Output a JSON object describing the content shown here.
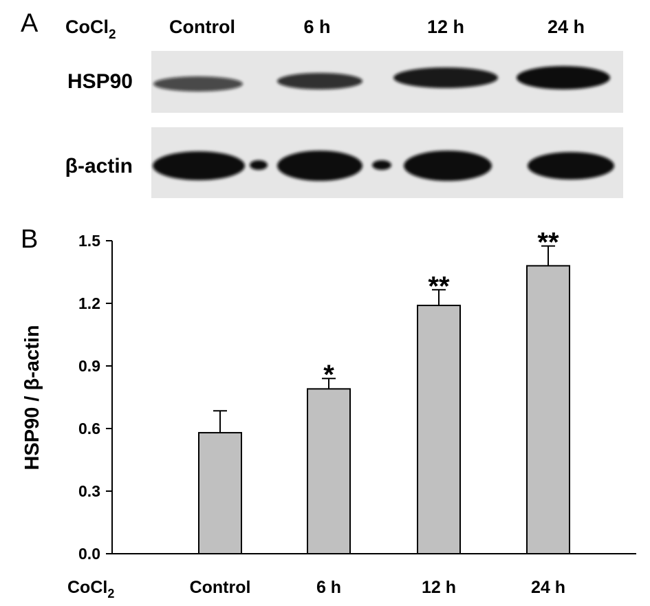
{
  "panel_a": {
    "letter": "A",
    "treatment_label": "CoCl",
    "treatment_sub": "2",
    "lanes": [
      "Control",
      "6 h",
      "12 h",
      "24 h"
    ],
    "blots": [
      {
        "label": "HSP90",
        "band_intensity": [
          0.55,
          0.7,
          0.85,
          0.95
        ]
      },
      {
        "label": "β-actin",
        "band_intensity": [
          1.0,
          1.0,
          1.0,
          1.0
        ]
      }
    ],
    "band_color": "#0a0a0a",
    "membrane_color": "#e6e6e6"
  },
  "chart_data": {
    "type": "bar",
    "panel_letter": "B",
    "categories": [
      "Control",
      "6 h",
      "12 h",
      "24 h"
    ],
    "values": [
      0.58,
      0.79,
      1.19,
      1.38
    ],
    "errors": [
      0.105,
      0.05,
      0.075,
      0.095
    ],
    "significance": [
      "",
      "*",
      "**",
      "**"
    ],
    "xlabel_prefix": "CoCl",
    "xlabel_sub": "2",
    "ylabel": "HSP90 / β-actin",
    "ylim": [
      0,
      1.5
    ],
    "yticks": [
      "0.0",
      "0.3",
      "0.6",
      "0.9",
      "1.2",
      "1.5"
    ],
    "bar_color": "#c0c0c0",
    "grid": false
  }
}
